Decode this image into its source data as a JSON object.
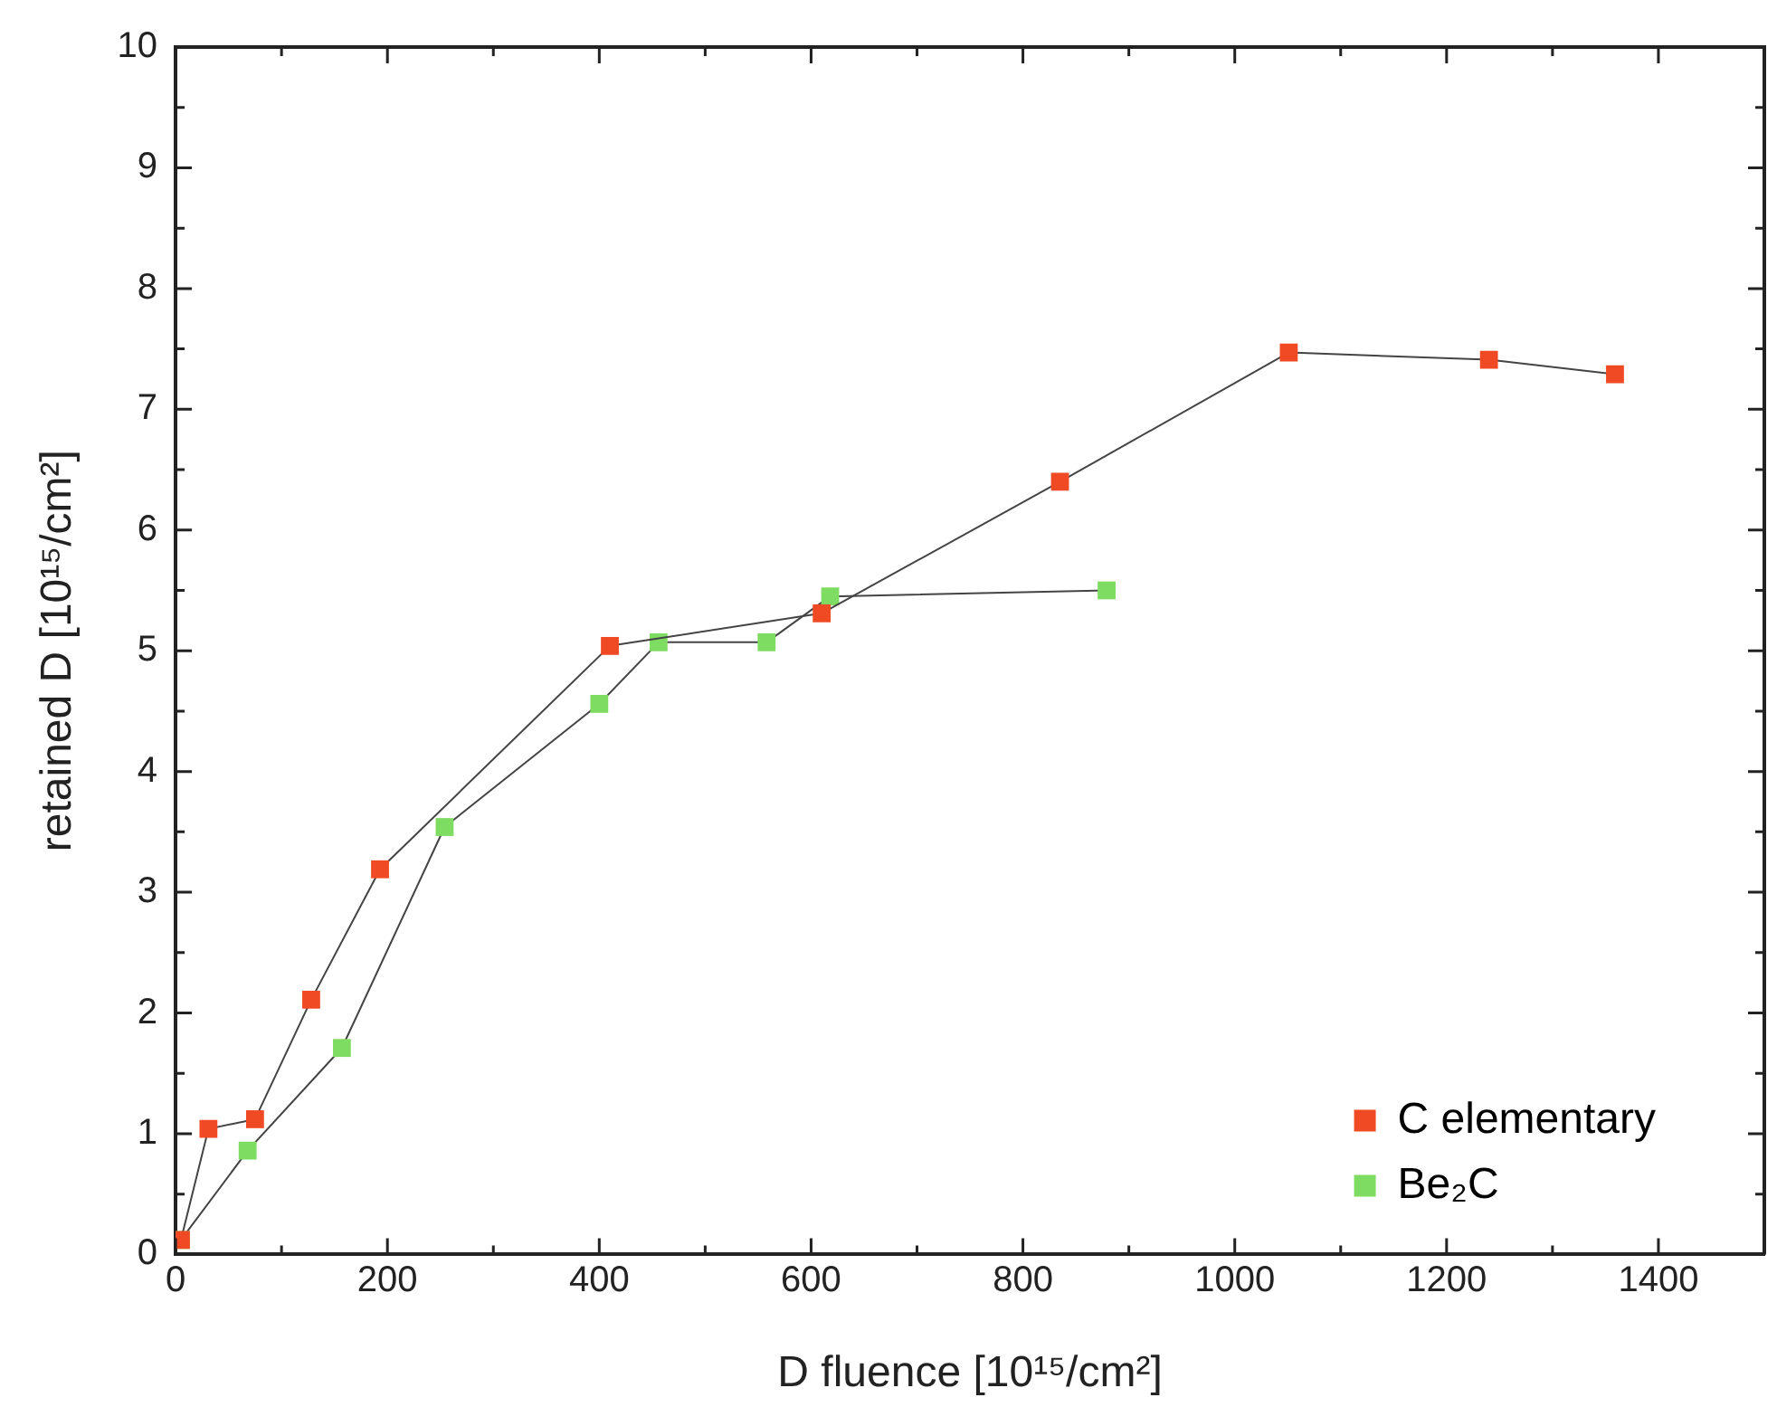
{
  "chart_data": {
    "type": "line",
    "xlabel": "D fluence [10¹⁵/cm²]",
    "ylabel": "retained D [10¹⁵/cm²]",
    "xlim": [
      0,
      1500
    ],
    "xticks": [
      0,
      200,
      400,
      600,
      800,
      1000,
      1200,
      1400
    ],
    "ylim": [
      0,
      10
    ],
    "yticks": [
      0,
      1,
      2,
      3,
      4,
      5,
      6,
      7,
      8,
      9,
      10
    ],
    "marker": "square",
    "line_style": "solid",
    "legend": "bottom right",
    "grid": false,
    "series": [
      {
        "name": "C elementary",
        "color": "#f04a24",
        "x": [
          5,
          31,
          75,
          128,
          193,
          410,
          610,
          835,
          1051,
          1240,
          1359
        ],
        "values": [
          0.12,
          1.04,
          1.12,
          2.11,
          3.19,
          5.04,
          5.31,
          6.4,
          7.47,
          7.41,
          7.29
        ]
      },
      {
        "name": "Be₂C",
        "color": "#7edc62",
        "x": [
          5,
          68,
          157,
          254,
          400,
          456,
          558,
          618,
          879
        ],
        "values": [
          0.12,
          0.86,
          1.71,
          3.54,
          4.56,
          5.07,
          5.07,
          5.45,
          5.5
        ]
      }
    ]
  }
}
